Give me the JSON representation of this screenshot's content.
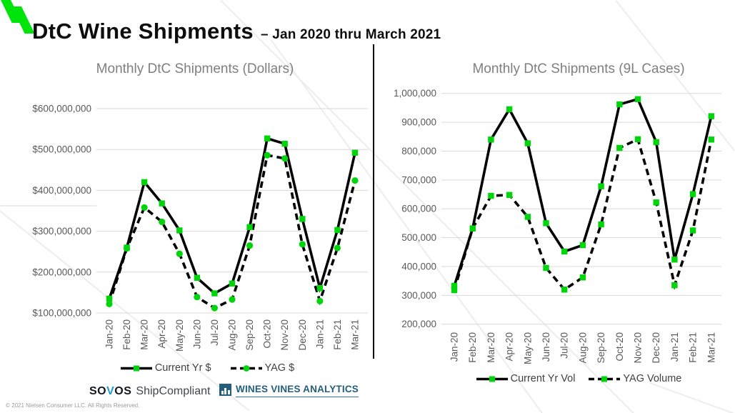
{
  "header": {
    "title": "DtC Wine Shipments",
    "subtitle": "– Jan 2020 thru March 2021"
  },
  "chart_data": [
    {
      "type": "line",
      "title": "Monthly DtC Shipments (Dollars)",
      "categories": [
        "Jan-20",
        "Feb-20",
        "Mar-20",
        "Apr-20",
        "May-20",
        "Jun-20",
        "Jul-20",
        "Aug-20",
        "Sep-20",
        "Oct-20",
        "Nov-20",
        "Dec-20",
        "Jan-21",
        "Feb-21",
        "Mar-21"
      ],
      "series": [
        {
          "name": "Current Yr $",
          "style": "solid",
          "marker": "square",
          "values": [
            135000000,
            260000000,
            420000000,
            368000000,
            302000000,
            186000000,
            148000000,
            172000000,
            310000000,
            527000000,
            514000000,
            330000000,
            161000000,
            303000000,
            492000000
          ]
        },
        {
          "name": "YAG $",
          "style": "dashed",
          "marker": "circle",
          "values": [
            122000000,
            258000000,
            358000000,
            323000000,
            245000000,
            139000000,
            112000000,
            133000000,
            265000000,
            486000000,
            478000000,
            268000000,
            129000000,
            259000000,
            424000000
          ]
        }
      ],
      "ylim": [
        100000000,
        600000000
      ],
      "ytick_step": 100000000,
      "tick_format": "usd",
      "grid": true,
      "legend_position": "bottom",
      "xlabel": "",
      "ylabel": ""
    },
    {
      "type": "line",
      "title": "Monthly DtC Shipments (9L Cases)",
      "categories": [
        "Jan-20",
        "Feb-20",
        "Mar-20",
        "Apr-20",
        "May-20",
        "Jun-20",
        "Jul-20",
        "Aug-20",
        "Sep-20",
        "Oct-20",
        "Nov-20",
        "Dec-20",
        "Jan-21",
        "Feb-21",
        "Mar-21"
      ],
      "series": [
        {
          "name": "Current Yr Vol",
          "style": "solid",
          "marker": "square",
          "values": [
            333000,
            532000,
            840000,
            945000,
            827000,
            550000,
            452000,
            474000,
            678000,
            962000,
            980000,
            831000,
            424000,
            651000,
            921000
          ]
        },
        {
          "name": "YAG Volume",
          "style": "dashed",
          "marker": "square",
          "values": [
            318000,
            532000,
            645000,
            648000,
            572000,
            395000,
            320000,
            362000,
            546000,
            811000,
            841000,
            622000,
            335000,
            525000,
            840000
          ]
        }
      ],
      "ylim": [
        200000,
        1000000
      ],
      "ytick_step": 100000,
      "tick_format": "number",
      "grid": true,
      "legend_position": "bottom",
      "xlabel": "",
      "ylabel": ""
    }
  ],
  "footer": {
    "sovos_pre": "SO",
    "sovos_v": "V",
    "sovos_post": "OS",
    "sovos_product": "ShipCompliant",
    "wva_label": "WINES VINES ANALYTICS",
    "copyright": "© 2021 Nielsen Consumer LLC. All Rights Reserved."
  },
  "colors": {
    "marker_green": "#00D50B",
    "logo_green": "#00E30B",
    "line_black": "#000000",
    "grid_gray": "#D9D9D9",
    "axis_text_gray": "#595959",
    "title_gray": "#7F7F7F",
    "legend_text": "#404040",
    "sovos_blue": "#1E9BD7",
    "wva_blue": "#235E7D"
  }
}
